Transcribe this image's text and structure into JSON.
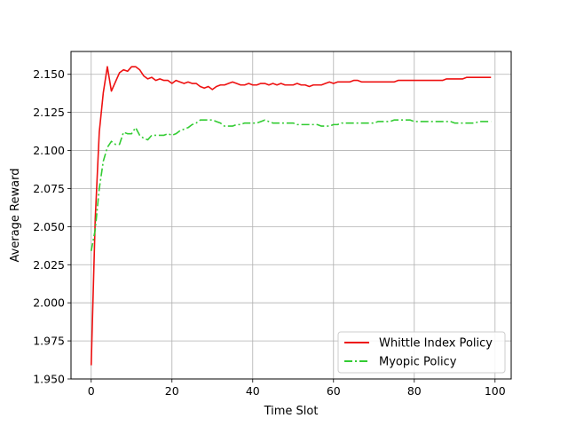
{
  "chart_data": {
    "type": "line",
    "xlabel": "Time Slot",
    "ylabel": "Average Reward",
    "xlim": [
      -5,
      104
    ],
    "ylim": [
      1.95,
      2.165
    ],
    "xticks": [
      0,
      20,
      40,
      60,
      80,
      100
    ],
    "yticks": [
      1.95,
      1.975,
      2.0,
      2.025,
      2.05,
      2.075,
      2.1,
      2.125,
      2.15
    ],
    "xtick_labels": [
      "0",
      "20",
      "40",
      "60",
      "80",
      "100"
    ],
    "ytick_labels": [
      "1.950",
      "1.975",
      "2.000",
      "2.025",
      "2.050",
      "2.075",
      "2.100",
      "2.125",
      "2.150"
    ],
    "grid": true,
    "legend_position": "bottom-right",
    "series": [
      {
        "name": "Whittle Index Policy",
        "color": "#ee1111",
        "style": "solid",
        "x": [
          0,
          1,
          2,
          3,
          4,
          5,
          6,
          7,
          8,
          9,
          10,
          11,
          12,
          13,
          14,
          15,
          16,
          17,
          18,
          19,
          20,
          21,
          22,
          23,
          24,
          25,
          26,
          27,
          28,
          29,
          30,
          31,
          32,
          33,
          34,
          35,
          36,
          37,
          38,
          39,
          40,
          41,
          42,
          43,
          44,
          45,
          46,
          47,
          48,
          49,
          50,
          51,
          52,
          53,
          54,
          55,
          56,
          57,
          58,
          59,
          60,
          61,
          62,
          63,
          64,
          65,
          66,
          67,
          68,
          69,
          70,
          71,
          72,
          73,
          74,
          75,
          76,
          77,
          78,
          79,
          80,
          81,
          82,
          83,
          84,
          85,
          86,
          87,
          88,
          89,
          90,
          91,
          92,
          93,
          94,
          95,
          96,
          97,
          98,
          99
        ],
        "y": [
          1.959,
          2.055,
          2.112,
          2.138,
          2.155,
          2.139,
          2.145,
          2.151,
          2.153,
          2.152,
          2.155,
          2.155,
          2.153,
          2.149,
          2.147,
          2.148,
          2.146,
          2.147,
          2.146,
          2.146,
          2.144,
          2.146,
          2.145,
          2.144,
          2.145,
          2.144,
          2.144,
          2.142,
          2.141,
          2.142,
          2.14,
          2.142,
          2.143,
          2.143,
          2.144,
          2.145,
          2.144,
          2.143,
          2.143,
          2.144,
          2.143,
          2.143,
          2.144,
          2.144,
          2.143,
          2.144,
          2.143,
          2.144,
          2.143,
          2.143,
          2.143,
          2.144,
          2.143,
          2.143,
          2.142,
          2.143,
          2.143,
          2.143,
          2.144,
          2.145,
          2.144,
          2.145,
          2.145,
          2.145,
          2.145,
          2.146,
          2.146,
          2.145,
          2.145,
          2.145,
          2.145,
          2.145,
          2.145,
          2.145,
          2.145,
          2.145,
          2.146,
          2.146,
          2.146,
          2.146,
          2.146,
          2.146,
          2.146,
          2.146,
          2.146,
          2.146,
          2.146,
          2.146,
          2.147,
          2.147,
          2.147,
          2.147,
          2.147,
          2.148,
          2.148,
          2.148,
          2.148,
          2.148,
          2.148,
          2.148
        ]
      },
      {
        "name": "Myopic Policy",
        "color": "#33cc33",
        "style": "dashdot",
        "x": [
          0,
          1,
          2,
          3,
          4,
          5,
          6,
          7,
          8,
          9,
          10,
          11,
          12,
          13,
          14,
          15,
          16,
          17,
          18,
          19,
          20,
          21,
          22,
          23,
          24,
          25,
          26,
          27,
          28,
          29,
          30,
          31,
          32,
          33,
          34,
          35,
          36,
          37,
          38,
          39,
          40,
          41,
          42,
          43,
          44,
          45,
          46,
          47,
          48,
          49,
          50,
          51,
          52,
          53,
          54,
          55,
          56,
          57,
          58,
          59,
          60,
          61,
          62,
          63,
          64,
          65,
          66,
          67,
          68,
          69,
          70,
          71,
          72,
          73,
          74,
          75,
          76,
          77,
          78,
          79,
          80,
          81,
          82,
          83,
          84,
          85,
          86,
          87,
          88,
          89,
          90,
          91,
          92,
          93,
          94,
          95,
          96,
          97,
          98,
          99
        ],
        "y": [
          2.034,
          2.048,
          2.075,
          2.093,
          2.102,
          2.106,
          2.104,
          2.104,
          2.112,
          2.111,
          2.111,
          2.115,
          2.11,
          2.108,
          2.107,
          2.11,
          2.11,
          2.11,
          2.11,
          2.111,
          2.11,
          2.111,
          2.113,
          2.114,
          2.115,
          2.117,
          2.118,
          2.12,
          2.12,
          2.12,
          2.12,
          2.119,
          2.118,
          2.116,
          2.116,
          2.116,
          2.117,
          2.117,
          2.118,
          2.118,
          2.118,
          2.118,
          2.119,
          2.12,
          2.119,
          2.118,
          2.118,
          2.118,
          2.118,
          2.118,
          2.118,
          2.117,
          2.117,
          2.117,
          2.117,
          2.117,
          2.117,
          2.116,
          2.116,
          2.116,
          2.117,
          2.117,
          2.118,
          2.118,
          2.118,
          2.118,
          2.118,
          2.118,
          2.118,
          2.118,
          2.118,
          2.119,
          2.119,
          2.119,
          2.119,
          2.12,
          2.12,
          2.12,
          2.12,
          2.12,
          2.119,
          2.119,
          2.119,
          2.119,
          2.119,
          2.119,
          2.119,
          2.119,
          2.119,
          2.119,
          2.118,
          2.118,
          2.118,
          2.118,
          2.118,
          2.118,
          2.119,
          2.119,
          2.119,
          2.119
        ]
      }
    ]
  }
}
